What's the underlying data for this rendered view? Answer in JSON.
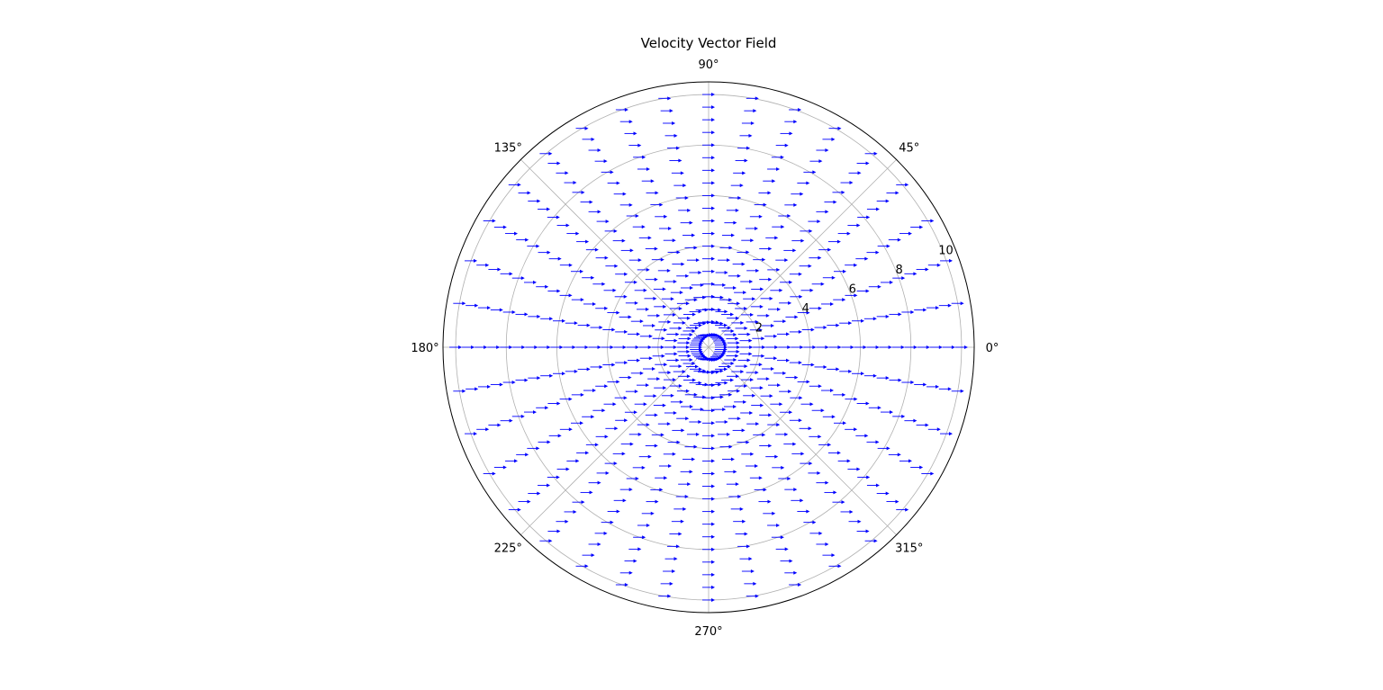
{
  "chart_data": {
    "type": "quiver-polar",
    "title": "Velocity Vector Field",
    "angle_tick_labels": [
      "0°",
      "45°",
      "90°",
      "135°",
      "180°",
      "225°",
      "270°",
      "315°"
    ],
    "angle_ticks_deg": [
      0,
      45,
      90,
      135,
      180,
      225,
      270,
      315
    ],
    "radial_tick_labels": [
      "2",
      "4",
      "6",
      "8",
      "10"
    ],
    "radial_ticks": [
      2,
      4,
      6,
      8,
      10
    ],
    "rlim": [
      0,
      10.5
    ],
    "grid": true,
    "vector_field": {
      "r_values": [
        0.5,
        1.0,
        1.5,
        2.0,
        2.5,
        3.0,
        3.5,
        4.0,
        4.5,
        5.0,
        5.5,
        6.0,
        6.5,
        7.0,
        7.5,
        8.0,
        8.5,
        9.0,
        9.5,
        10.0
      ],
      "theta_count": 36,
      "theta_range_deg": [
        0,
        350
      ],
      "direction": "positive x",
      "color": "#0000ff"
    }
  }
}
